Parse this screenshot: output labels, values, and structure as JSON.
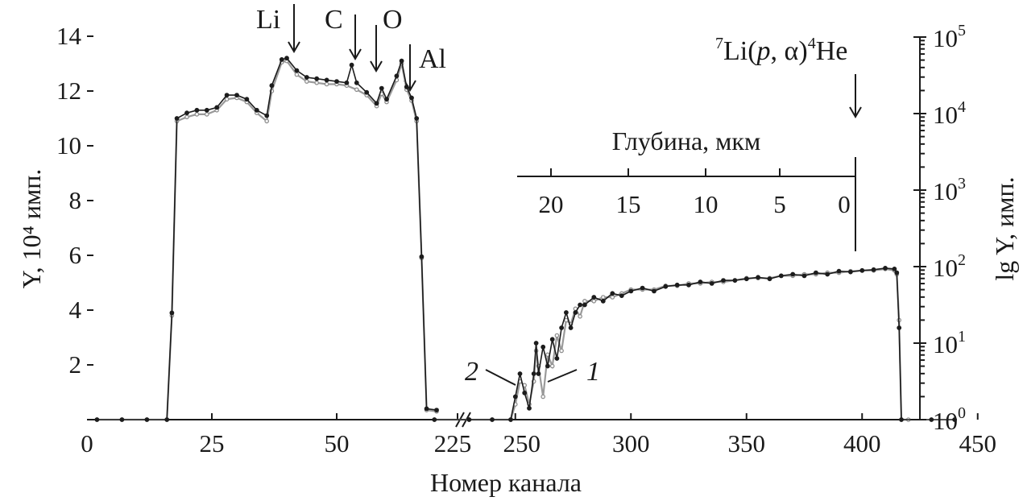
{
  "chart_data": {
    "type": "line",
    "xlabel": "Номер канала",
    "ylabel_left": "Y, 10⁴ имп.",
    "ylabel_right": "lg Y, имп.",
    "x_ticks": [
      "0",
      "25",
      "50",
      "225",
      "250",
      "300",
      "350",
      "400",
      "450"
    ],
    "y_ticks_left": [
      "2",
      "4",
      "6",
      "8",
      "10",
      "12",
      "14"
    ],
    "y_ticks_right": [
      "0",
      "1",
      "2",
      "3",
      "4",
      "5"
    ],
    "ylim_left": [
      0,
      14
    ],
    "ylim_right": [
      0,
      5
    ],
    "right_scale": "log",
    "axis_break": "between 70 and 215",
    "top_axis": {
      "label": "Глубина, мкм",
      "ticks": [
        "20",
        "15",
        "10",
        "5",
        "0"
      ]
    },
    "element_labels": [
      "Li",
      "C",
      "O",
      "Al"
    ],
    "reaction_label": "7Li(p, α)4He",
    "series_markers": [
      "1",
      "2"
    ],
    "series": [
      {
        "id": "1",
        "axis": "left",
        "points": [
          [
            2,
            0
          ],
          [
            7,
            0
          ],
          [
            12,
            0
          ],
          [
            16,
            0
          ],
          [
            17,
            3.8
          ],
          [
            18,
            10.9
          ],
          [
            20,
            11.05
          ],
          [
            22,
            11.15
          ],
          [
            24,
            11.15
          ],
          [
            26,
            11.3
          ],
          [
            28,
            11.7
          ],
          [
            30,
            11.75
          ],
          [
            32,
            11.6
          ],
          [
            34,
            11.2
          ],
          [
            36,
            10.9
          ],
          [
            37,
            12
          ],
          [
            39,
            13.05
          ],
          [
            40,
            13.1
          ],
          [
            42,
            12.6
          ],
          [
            44,
            12.35
          ],
          [
            46,
            12.3
          ],
          [
            48,
            12.25
          ],
          [
            50,
            12.25
          ],
          [
            52,
            12.2
          ],
          [
            54,
            12.05
          ],
          [
            56,
            11.85
          ],
          [
            58,
            11.45
          ],
          [
            59,
            11.9
          ],
          [
            60,
            11.6
          ],
          [
            62,
            12.4
          ],
          [
            63,
            13
          ],
          [
            64,
            12.05
          ],
          [
            65,
            11.65
          ],
          [
            66,
            10.9
          ],
          [
            67,
            5.9
          ],
          [
            68,
            0.35
          ],
          [
            70,
            0.3
          ]
        ]
      },
      {
        "id": "1",
        "axis": "right",
        "points": [
          [
            215,
            0
          ],
          [
            230,
            0
          ],
          [
            240,
            0
          ],
          [
            248,
            0
          ],
          [
            250,
            0.2
          ],
          [
            252,
            0.5
          ],
          [
            254,
            0.45
          ],
          [
            256,
            0.2
          ],
          [
            258,
            0.5
          ],
          [
            259,
            0.9
          ],
          [
            260,
            0.7
          ],
          [
            262,
            0.3
          ],
          [
            264,
            0.85
          ],
          [
            266,
            0.7
          ],
          [
            268,
            1.1
          ],
          [
            270,
            0.9
          ],
          [
            272,
            1.3
          ],
          [
            274,
            1.25
          ],
          [
            276,
            1.45
          ],
          [
            278,
            1.35
          ],
          [
            280,
            1.55
          ],
          [
            284,
            1.55
          ],
          [
            288,
            1.6
          ],
          [
            292,
            1.6
          ],
          [
            296,
            1.65
          ],
          [
            300,
            1.7
          ],
          [
            305,
            1.7
          ],
          [
            310,
            1.7
          ],
          [
            315,
            1.75
          ],
          [
            320,
            1.75
          ],
          [
            325,
            1.78
          ],
          [
            330,
            1.78
          ],
          [
            335,
            1.8
          ],
          [
            340,
            1.8
          ],
          [
            345,
            1.82
          ],
          [
            350,
            1.85
          ],
          [
            355,
            1.85
          ],
          [
            360,
            1.85
          ],
          [
            365,
            1.88
          ],
          [
            370,
            1.88
          ],
          [
            375,
            1.9
          ],
          [
            380,
            1.9
          ],
          [
            385,
            1.92
          ],
          [
            390,
            1.92
          ],
          [
            395,
            1.94
          ],
          [
            400,
            1.95
          ],
          [
            405,
            1.95
          ],
          [
            410,
            1.97
          ],
          [
            414,
            1.95
          ],
          [
            415,
            1.9
          ],
          [
            416,
            1.3
          ],
          [
            417,
            0
          ],
          [
            420,
            0
          ]
        ]
      },
      {
        "id": "2",
        "axis": "left",
        "points": [
          [
            2,
            0
          ],
          [
            7,
            0
          ],
          [
            12,
            0
          ],
          [
            16,
            0
          ],
          [
            17,
            3.9
          ],
          [
            18,
            11.0
          ],
          [
            20,
            11.2
          ],
          [
            22,
            11.3
          ],
          [
            24,
            11.3
          ],
          [
            26,
            11.4
          ],
          [
            28,
            11.85
          ],
          [
            30,
            11.85
          ],
          [
            32,
            11.7
          ],
          [
            34,
            11.3
          ],
          [
            36,
            11.1
          ],
          [
            37,
            12.2
          ],
          [
            39,
            13.15
          ],
          [
            40,
            13.2
          ],
          [
            42,
            12.75
          ],
          [
            44,
            12.5
          ],
          [
            46,
            12.45
          ],
          [
            48,
            12.4
          ],
          [
            50,
            12.35
          ],
          [
            52,
            12.3
          ],
          [
            53,
            12.95
          ],
          [
            54,
            12.3
          ],
          [
            56,
            11.95
          ],
          [
            58,
            11.55
          ],
          [
            59,
            12.1
          ],
          [
            60,
            11.7
          ],
          [
            62,
            12.55
          ],
          [
            63,
            13.1
          ],
          [
            64,
            12.15
          ],
          [
            65,
            11.75
          ],
          [
            66,
            11.0
          ],
          [
            67,
            5.95
          ],
          [
            68,
            0.4
          ],
          [
            70,
            0.35
          ]
        ]
      },
      {
        "id": "2",
        "axis": "right",
        "points": [
          [
            215,
            0
          ],
          [
            230,
            0
          ],
          [
            240,
            0
          ],
          [
            248,
            0
          ],
          [
            250,
            0.3
          ],
          [
            252,
            0.6
          ],
          [
            254,
            0.35
          ],
          [
            256,
            0.15
          ],
          [
            258,
            0.6
          ],
          [
            259,
            1.0
          ],
          [
            260,
            0.6
          ],
          [
            262,
            0.95
          ],
          [
            264,
            0.7
          ],
          [
            266,
            1.05
          ],
          [
            268,
            0.8
          ],
          [
            270,
            1.2
          ],
          [
            272,
            1.4
          ],
          [
            274,
            1.2
          ],
          [
            276,
            1.4
          ],
          [
            278,
            1.5
          ],
          [
            280,
            1.5
          ],
          [
            284,
            1.6
          ],
          [
            288,
            1.55
          ],
          [
            292,
            1.65
          ],
          [
            296,
            1.62
          ],
          [
            300,
            1.68
          ],
          [
            305,
            1.72
          ],
          [
            310,
            1.68
          ],
          [
            315,
            1.74
          ],
          [
            320,
            1.76
          ],
          [
            325,
            1.76
          ],
          [
            330,
            1.8
          ],
          [
            335,
            1.78
          ],
          [
            340,
            1.82
          ],
          [
            345,
            1.82
          ],
          [
            350,
            1.84
          ],
          [
            355,
            1.86
          ],
          [
            360,
            1.84
          ],
          [
            365,
            1.88
          ],
          [
            370,
            1.9
          ],
          [
            375,
            1.88
          ],
          [
            380,
            1.92
          ],
          [
            385,
            1.9
          ],
          [
            390,
            1.94
          ],
          [
            395,
            1.93
          ],
          [
            400,
            1.95
          ],
          [
            405,
            1.96
          ],
          [
            410,
            1.98
          ],
          [
            414,
            1.97
          ],
          [
            415,
            1.92
          ],
          [
            416,
            1.2
          ],
          [
            417,
            0
          ],
          [
            430,
            0
          ],
          [
            440,
            0
          ]
        ]
      }
    ]
  }
}
